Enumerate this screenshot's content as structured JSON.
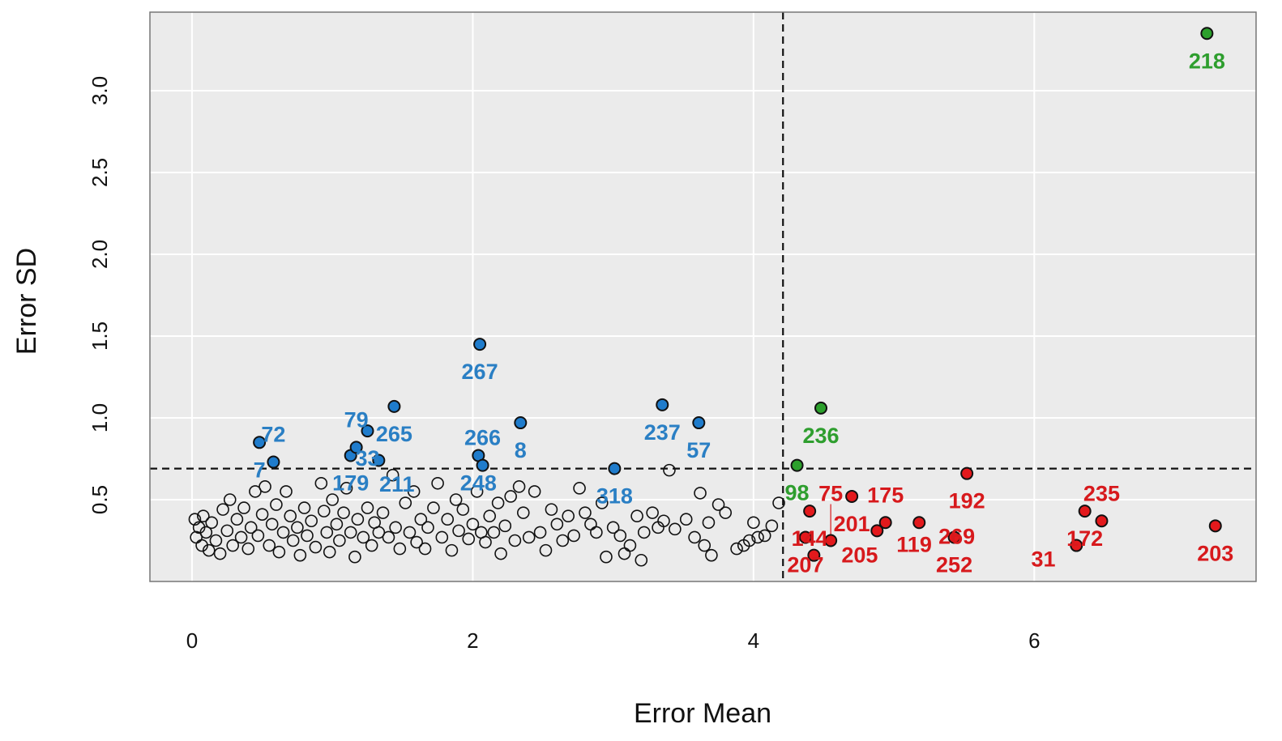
{
  "chart_data": {
    "type": "scatter",
    "title": "",
    "xlabel": "Error Mean",
    "ylabel": "Error SD",
    "xlim": [
      -0.3,
      7.58
    ],
    "ylim": [
      0,
      3.48
    ],
    "xticks": [
      0,
      2,
      4,
      6
    ],
    "yticks": [
      0.5,
      1.0,
      1.5,
      2.0,
      2.5,
      3.0
    ],
    "ytick_labels": [
      "0.5",
      "1.0",
      "1.5",
      "2.0",
      "2.5",
      "3.0"
    ],
    "grid": true,
    "background": "#ebebeb",
    "reference_lines": {
      "vertical_x": 4.21,
      "horizontal_y": 0.69,
      "style": "dashed"
    },
    "colors": {
      "blue": "#1f7ccc",
      "green": "#2ca02c",
      "red": "#e3191c",
      "blue_label": "#2a7fc4",
      "green_label": "#2e9e2e",
      "red_label": "#d7191c"
    },
    "labeled_points": [
      {
        "x": 0.48,
        "y": 0.85,
        "label": "7",
        "group": "blue"
      },
      {
        "x": 0.58,
        "y": 0.73,
        "label": "72",
        "group": "blue"
      },
      {
        "x": 1.13,
        "y": 0.77,
        "label": "179",
        "group": "blue"
      },
      {
        "x": 1.17,
        "y": 0.82,
        "label": "79",
        "group": "blue"
      },
      {
        "x": 1.25,
        "y": 0.92,
        "label": "33",
        "group": "blue"
      },
      {
        "x": 1.33,
        "y": 0.74,
        "label": "211",
        "group": "blue"
      },
      {
        "x": 1.44,
        "y": 1.07,
        "label": "265",
        "group": "blue"
      },
      {
        "x": 2.05,
        "y": 1.45,
        "label": "267",
        "group": "blue"
      },
      {
        "x": 2.04,
        "y": 0.77,
        "label": "248",
        "group": "blue"
      },
      {
        "x": 2.07,
        "y": 0.71,
        "label": "266",
        "group": "blue"
      },
      {
        "x": 2.34,
        "y": 0.97,
        "label": "8",
        "group": "blue"
      },
      {
        "x": 3.01,
        "y": 0.69,
        "label": "318",
        "group": "blue"
      },
      {
        "x": 3.35,
        "y": 1.08,
        "label": "237",
        "group": "blue"
      },
      {
        "x": 3.61,
        "y": 0.97,
        "label": "57",
        "group": "blue"
      },
      {
        "x": 7.23,
        "y": 3.35,
        "label": "218",
        "group": "green"
      },
      {
        "x": 4.48,
        "y": 1.06,
        "label": "236",
        "group": "green"
      },
      {
        "x": 4.31,
        "y": 0.71,
        "label": "98",
        "group": "green"
      },
      {
        "x": 5.52,
        "y": 0.66,
        "label": "192",
        "group": "red"
      },
      {
        "x": 4.7,
        "y": 0.52,
        "label": "201",
        "group": "red"
      },
      {
        "x": 4.4,
        "y": 0.43,
        "label": "144",
        "group": "red"
      },
      {
        "x": 4.37,
        "y": 0.27,
        "label": "207",
        "group": "red"
      },
      {
        "x": 4.43,
        "y": 0.16,
        "label": "205",
        "group": "red"
      },
      {
        "x": 4.55,
        "y": 0.25,
        "label": "75",
        "group": "red"
      },
      {
        "x": 4.94,
        "y": 0.36,
        "label": "175",
        "group": "red"
      },
      {
        "x": 4.88,
        "y": 0.31,
        "label": "119",
        "group": "red"
      },
      {
        "x": 5.18,
        "y": 0.36,
        "label": "269",
        "group": "red"
      },
      {
        "x": 5.43,
        "y": 0.27,
        "label": "252",
        "group": "red"
      },
      {
        "x": 6.36,
        "y": 0.43,
        "label": "172",
        "group": "red"
      },
      {
        "x": 6.48,
        "y": 0.37,
        "label": "235",
        "group": "red"
      },
      {
        "x": 6.3,
        "y": 0.22,
        "label": "31",
        "group": "red"
      },
      {
        "x": 7.29,
        "y": 0.34,
        "label": "203",
        "group": "red"
      }
    ],
    "unlabeled_points": [
      [
        0.02,
        0.38
      ],
      [
        0.03,
        0.27
      ],
      [
        0.05,
        0.33
      ],
      [
        0.07,
        0.22
      ],
      [
        0.08,
        0.4
      ],
      [
        0.1,
        0.3
      ],
      [
        0.12,
        0.19
      ],
      [
        0.14,
        0.36
      ],
      [
        0.17,
        0.25
      ],
      [
        0.2,
        0.17
      ],
      [
        0.22,
        0.44
      ],
      [
        0.25,
        0.31
      ],
      [
        0.27,
        0.5
      ],
      [
        0.29,
        0.22
      ],
      [
        0.32,
        0.38
      ],
      [
        0.35,
        0.27
      ],
      [
        0.37,
        0.45
      ],
      [
        0.4,
        0.2
      ],
      [
        0.42,
        0.33
      ],
      [
        0.45,
        0.55
      ],
      [
        0.47,
        0.28
      ],
      [
        0.5,
        0.41
      ],
      [
        0.52,
        0.58
      ],
      [
        0.55,
        0.22
      ],
      [
        0.57,
        0.35
      ],
      [
        0.6,
        0.47
      ],
      [
        0.62,
        0.18
      ],
      [
        0.65,
        0.3
      ],
      [
        0.67,
        0.55
      ],
      [
        0.7,
        0.4
      ],
      [
        0.72,
        0.25
      ],
      [
        0.75,
        0.33
      ],
      [
        0.77,
        0.16
      ],
      [
        0.8,
        0.45
      ],
      [
        0.82,
        0.28
      ],
      [
        0.85,
        0.37
      ],
      [
        0.88,
        0.21
      ],
      [
        0.92,
        0.6
      ],
      [
        0.94,
        0.43
      ],
      [
        0.96,
        0.3
      ],
      [
        0.98,
        0.18
      ],
      [
        1.0,
        0.5
      ],
      [
        1.03,
        0.35
      ],
      [
        1.05,
        0.25
      ],
      [
        1.08,
        0.42
      ],
      [
        1.1,
        0.57
      ],
      [
        1.13,
        0.3
      ],
      [
        1.16,
        0.15
      ],
      [
        1.18,
        0.38
      ],
      [
        1.22,
        0.27
      ],
      [
        1.25,
        0.45
      ],
      [
        1.28,
        0.22
      ],
      [
        1.3,
        0.36
      ],
      [
        1.33,
        0.3
      ],
      [
        1.36,
        0.42
      ],
      [
        1.4,
        0.27
      ],
      [
        1.43,
        0.65
      ],
      [
        1.45,
        0.33
      ],
      [
        1.48,
        0.2
      ],
      [
        1.52,
        0.48
      ],
      [
        1.55,
        0.3
      ],
      [
        1.58,
        0.55
      ],
      [
        1.6,
        0.24
      ],
      [
        1.63,
        0.38
      ],
      [
        1.66,
        0.2
      ],
      [
        1.68,
        0.33
      ],
      [
        1.72,
        0.45
      ],
      [
        1.75,
        0.6
      ],
      [
        1.78,
        0.27
      ],
      [
        1.82,
        0.38
      ],
      [
        1.85,
        0.19
      ],
      [
        1.88,
        0.5
      ],
      [
        1.9,
        0.31
      ],
      [
        1.93,
        0.44
      ],
      [
        1.97,
        0.26
      ],
      [
        2.0,
        0.35
      ],
      [
        2.03,
        0.55
      ],
      [
        2.06,
        0.3
      ],
      [
        2.09,
        0.24
      ],
      [
        2.12,
        0.4
      ],
      [
        2.15,
        0.3
      ],
      [
        2.18,
        0.48
      ],
      [
        2.2,
        0.17
      ],
      [
        2.23,
        0.34
      ],
      [
        2.27,
        0.52
      ],
      [
        2.3,
        0.25
      ],
      [
        2.33,
        0.58
      ],
      [
        2.36,
        0.42
      ],
      [
        2.4,
        0.27
      ],
      [
        2.44,
        0.55
      ],
      [
        2.48,
        0.3
      ],
      [
        2.52,
        0.19
      ],
      [
        2.56,
        0.44
      ],
      [
        2.6,
        0.35
      ],
      [
        2.64,
        0.25
      ],
      [
        2.68,
        0.4
      ],
      [
        2.72,
        0.28
      ],
      [
        2.76,
        0.57
      ],
      [
        2.8,
        0.42
      ],
      [
        2.84,
        0.35
      ],
      [
        2.88,
        0.3
      ],
      [
        2.92,
        0.48
      ],
      [
        2.95,
        0.15
      ],
      [
        3.0,
        0.33
      ],
      [
        3.05,
        0.28
      ],
      [
        3.08,
        0.17
      ],
      [
        3.12,
        0.22
      ],
      [
        3.17,
        0.4
      ],
      [
        3.2,
        0.13
      ],
      [
        3.22,
        0.3
      ],
      [
        3.28,
        0.42
      ],
      [
        3.32,
        0.33
      ],
      [
        3.36,
        0.37
      ],
      [
        3.4,
        0.68
      ],
      [
        3.44,
        0.32
      ],
      [
        3.52,
        0.38
      ],
      [
        3.58,
        0.27
      ],
      [
        3.62,
        0.54
      ],
      [
        3.65,
        0.22
      ],
      [
        3.68,
        0.36
      ],
      [
        3.7,
        0.16
      ],
      [
        3.75,
        0.47
      ],
      [
        3.8,
        0.42
      ],
      [
        3.88,
        0.2
      ],
      [
        3.93,
        0.22
      ],
      [
        3.97,
        0.25
      ],
      [
        4.0,
        0.36
      ],
      [
        4.03,
        0.27
      ],
      [
        4.08,
        0.28
      ],
      [
        4.13,
        0.34
      ],
      [
        4.18,
        0.48
      ]
    ]
  }
}
